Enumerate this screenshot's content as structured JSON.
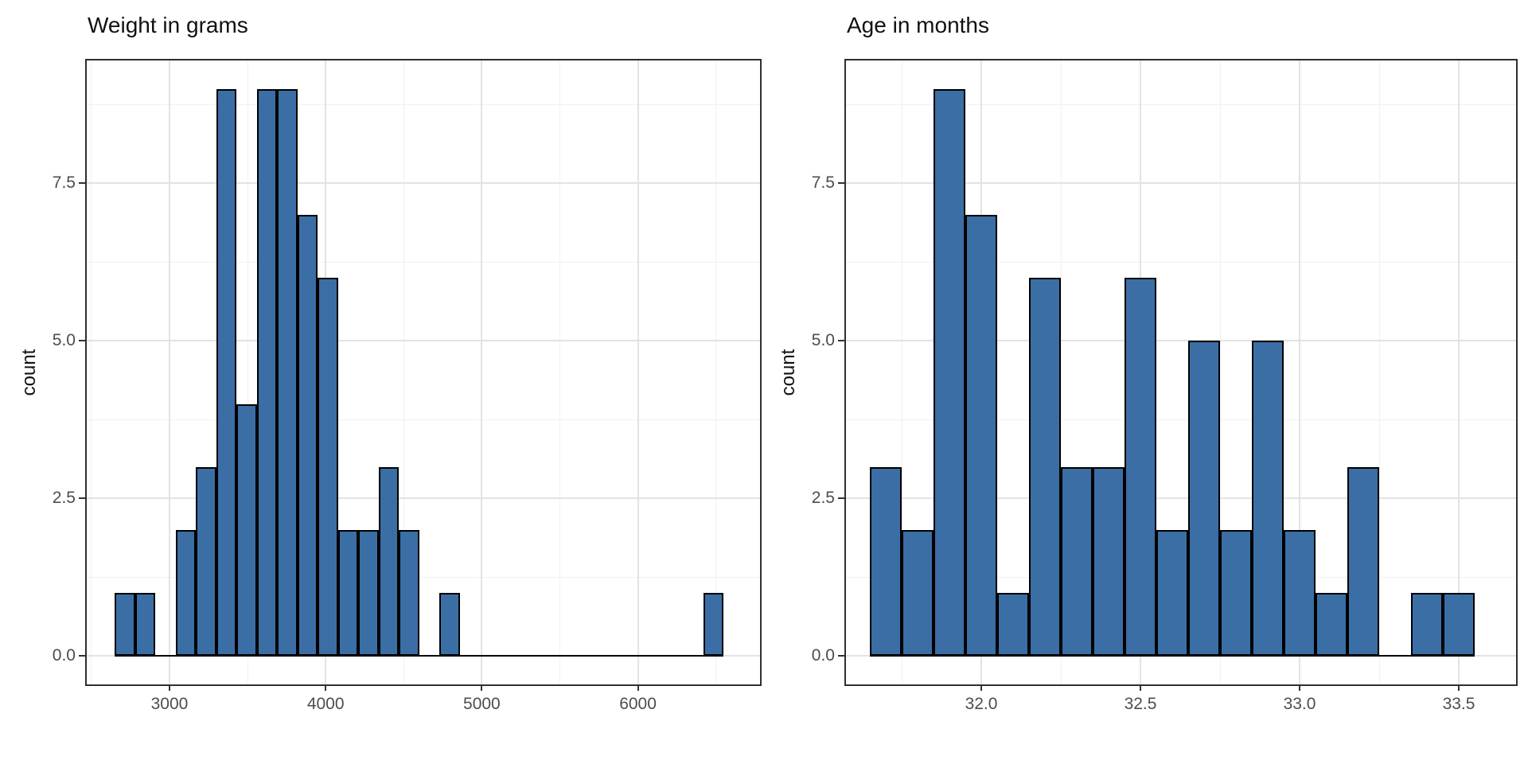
{
  "figure": {
    "background": "#ffffff",
    "palette": {
      "bar_fill": "#3b6ea5",
      "bar_stroke": "#000000",
      "grid_major": "#e3e3e3",
      "grid_minor": "#f1f1f1",
      "panel_border": "#2f2f2f",
      "tick_text": "#4d4d4d",
      "title_text": "#111111"
    }
  },
  "chart_data": [
    {
      "type": "bar",
      "subtype": "histogram",
      "title": "Weight in grams",
      "xlabel": "",
      "ylabel": "count",
      "bin_start": 2650,
      "binwidth": 130,
      "counts": [
        1,
        1,
        0,
        2,
        3,
        9,
        4,
        9,
        9,
        7,
        6,
        2,
        2,
        3,
        2,
        0,
        1,
        0,
        0,
        0,
        0,
        0,
        0,
        0,
        0,
        0,
        0,
        0,
        0,
        1
      ],
      "total_observations": 62,
      "xticks": [
        3000,
        4000,
        5000,
        6000
      ],
      "xtick_labels": [
        "3000",
        "4000",
        "5000",
        "6000"
      ],
      "xminor": [
        2500,
        3500,
        4500,
        5500,
        6500
      ],
      "yticks": [
        0,
        2.5,
        5,
        7.5
      ],
      "ytick_labels": [
        "0.0",
        "2.5",
        "5.0",
        "7.5"
      ],
      "yminor": [
        1.25,
        3.75,
        6.25,
        8.75
      ],
      "xlim": [
        2470,
        6782
      ],
      "ylim": [
        -0.45,
        9.45
      ],
      "grid": true,
      "legend": "none"
    },
    {
      "type": "bar",
      "subtype": "histogram",
      "title": "Age in months",
      "xlabel": "",
      "ylabel": "count",
      "bin_start": 31.65,
      "binwidth": 0.1,
      "counts": [
        3,
        2,
        9,
        7,
        1,
        6,
        3,
        3,
        6,
        2,
        5,
        2,
        5,
        2,
        1,
        3,
        0,
        1,
        1
      ],
      "total_observations": 62,
      "xticks": [
        32.0,
        32.5,
        33.0,
        33.5
      ],
      "xtick_labels": [
        "32.0",
        "32.5",
        "33.0",
        "33.5"
      ],
      "xminor": [
        31.75,
        32.25,
        32.75,
        33.25
      ],
      "yticks": [
        0,
        2.5,
        5,
        7.5
      ],
      "ytick_labels": [
        "0.0",
        "2.5",
        "5.0",
        "7.5"
      ],
      "yminor": [
        1.25,
        3.75,
        6.25,
        8.75
      ],
      "xlim": [
        31.575,
        33.68
      ],
      "ylim": [
        -0.45,
        9.45
      ],
      "grid": true,
      "legend": "none"
    }
  ]
}
